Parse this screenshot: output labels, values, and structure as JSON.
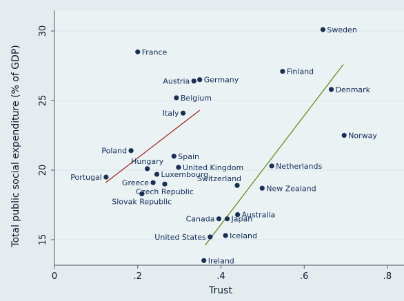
{
  "chart_data": {
    "type": "scatter",
    "title": "",
    "xlabel": "Trust",
    "ylabel": "Total public social expenditure (% of GDP)",
    "xlim": [
      0,
      0.8
    ],
    "ylim": [
      14,
      31
    ],
    "xticks": [
      0,
      0.2,
      0.4,
      0.6,
      0.8
    ],
    "xtick_labels": [
      "0",
      ".2",
      ".4",
      ".6",
      ".8"
    ],
    "yticks": [
      15,
      20,
      25,
      30
    ],
    "ytick_labels": [
      "15",
      "20",
      "25",
      "30"
    ],
    "grid": "horizontal",
    "points": [
      {
        "label": "Sweden",
        "x": 0.645,
        "y": 30.1,
        "pos": "right"
      },
      {
        "label": "France",
        "x": 0.2,
        "y": 28.5,
        "pos": "right"
      },
      {
        "label": "Finland",
        "x": 0.548,
        "y": 27.1,
        "pos": "right"
      },
      {
        "label": "Austria",
        "x": 0.335,
        "y": 26.4,
        "pos": "left"
      },
      {
        "label": "Germany",
        "x": 0.349,
        "y": 26.5,
        "pos": "right"
      },
      {
        "label": "Denmark",
        "x": 0.665,
        "y": 25.8,
        "pos": "right"
      },
      {
        "label": "Belgium",
        "x": 0.293,
        "y": 25.2,
        "pos": "right"
      },
      {
        "label": "Italy",
        "x": 0.309,
        "y": 24.1,
        "pos": "left"
      },
      {
        "label": "Norway",
        "x": 0.696,
        "y": 22.5,
        "pos": "right"
      },
      {
        "label": "Poland",
        "x": 0.184,
        "y": 21.4,
        "pos": "left"
      },
      {
        "label": "Spain",
        "x": 0.287,
        "y": 21.0,
        "pos": "right"
      },
      {
        "label": "Hungary",
        "x": 0.223,
        "y": 20.1,
        "pos": "above"
      },
      {
        "label": "United Kingdom",
        "x": 0.298,
        "y": 20.2,
        "pos": "right"
      },
      {
        "label": "Netherlands",
        "x": 0.522,
        "y": 20.3,
        "pos": "right"
      },
      {
        "label": "Luxembourg",
        "x": 0.246,
        "y": 19.7,
        "pos": "right"
      },
      {
        "label": "Portugal",
        "x": 0.124,
        "y": 19.5,
        "pos": "left"
      },
      {
        "label": "Greece",
        "x": 0.237,
        "y": 19.1,
        "pos": "left"
      },
      {
        "label": "Czech Republic",
        "x": 0.265,
        "y": 19.0,
        "pos": "below"
      },
      {
        "label": "Switzerland",
        "x": 0.439,
        "y": 18.9,
        "pos": "aboveleft"
      },
      {
        "label": "New Zealand",
        "x": 0.499,
        "y": 18.7,
        "pos": "right"
      },
      {
        "label": "Slovak Republic",
        "x": 0.21,
        "y": 18.3,
        "pos": "below"
      },
      {
        "label": "Australia",
        "x": 0.44,
        "y": 16.8,
        "pos": "right"
      },
      {
        "label": "Canada",
        "x": 0.395,
        "y": 16.5,
        "pos": "left"
      },
      {
        "label": "Japan",
        "x": 0.415,
        "y": 16.5,
        "pos": "right"
      },
      {
        "label": "United States",
        "x": 0.374,
        "y": 15.2,
        "pos": "left"
      },
      {
        "label": "Iceland",
        "x": 0.411,
        "y": 15.3,
        "pos": "right"
      },
      {
        "label": "Ireland",
        "x": 0.359,
        "y": 13.5,
        "pos": "right"
      }
    ],
    "fit_lines": [
      {
        "color": "#a0302d",
        "x": [
          0.123,
          0.349
        ],
        "y": [
          19.1,
          24.3
        ]
      },
      {
        "color": "#6b8a22",
        "x": [
          0.362,
          0.694
        ],
        "y": [
          14.6,
          27.6
        ]
      }
    ],
    "colors": {
      "background": "#e5ecf0",
      "plot_bg": "#eaf2f3",
      "marker": "#1a2f52",
      "grid": "#dbe6ea"
    }
  }
}
